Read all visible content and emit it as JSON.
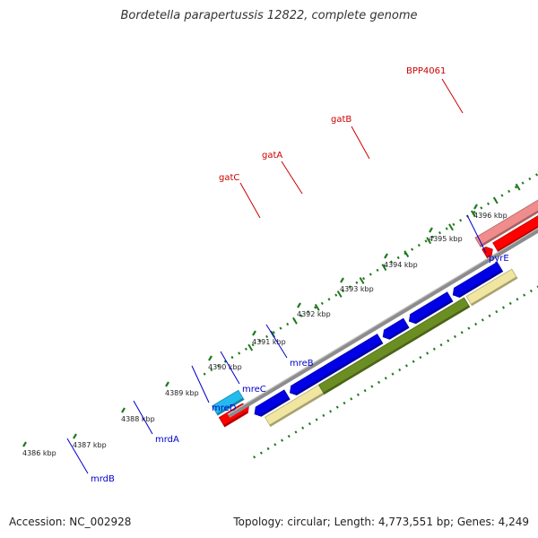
{
  "title": "Bordetella parapertussis 12822, complete genome",
  "footer": {
    "accession": "Accession: NC_002928",
    "summary": "Topology: circular; Length: 4,773,551 bp; Genes: 4,249"
  },
  "colors": {
    "backbone": "#8c8c8c",
    "tick": "#1e7a1e",
    "label_red": "#cc0000",
    "label_blue": "#0000cc",
    "rRNA_pink": "#f08c8c",
    "red": "#ff0000",
    "blue": "#0000e6",
    "khaki": "#f0e6a0",
    "olive": "#6b8e23",
    "magenta": "#ee2277",
    "cyan": "#22bbee"
  },
  "ticks": [
    {
      "label": "4386 kbp"
    },
    {
      "label": "4387 kbp"
    },
    {
      "label": "4388 kbp"
    },
    {
      "label": "4389 kbp"
    },
    {
      "label": "4390 kbp"
    },
    {
      "label": "4391 kbp"
    },
    {
      "label": "4392 kbp"
    },
    {
      "label": "4393 kbp"
    },
    {
      "label": "4394 kbp"
    },
    {
      "label": "4395 kbp"
    },
    {
      "label": "4396 kbp"
    }
  ],
  "genes": [
    {
      "name": "mrdB",
      "color": "label_blue"
    },
    {
      "name": "mrdA",
      "color": "label_blue"
    },
    {
      "name": "mreD",
      "color": "label_blue"
    },
    {
      "name": "mreC",
      "color": "label_blue"
    },
    {
      "name": "mreB",
      "color": "label_blue"
    },
    {
      "name": "pyrE",
      "color": "label_blue"
    },
    {
      "name": "gatC",
      "color": "label_red"
    },
    {
      "name": "gatA",
      "color": "label_red"
    },
    {
      "name": "gatB",
      "color": "label_red"
    },
    {
      "name": "BPP4061",
      "color": "label_red"
    }
  ]
}
